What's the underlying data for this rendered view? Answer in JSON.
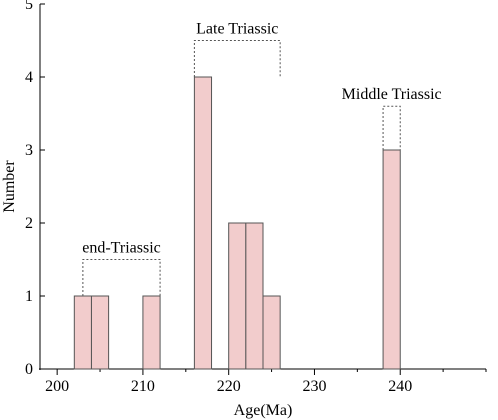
{
  "chart_data": {
    "type": "bar",
    "subtype": "histogram",
    "bin_width": 2,
    "x": [
      203,
      205,
      207,
      209,
      211,
      215,
      217,
      219,
      221,
      223,
      225,
      237,
      239
    ],
    "values": [
      1,
      1,
      0,
      0,
      1,
      0,
      4,
      0,
      2,
      2,
      1,
      0,
      3
    ],
    "xlabel": "Age(Ma)",
    "ylabel": "Number",
    "xlim": [
      198,
      250
    ],
    "ylim": [
      0,
      5
    ],
    "xticks": [
      "200",
      "210",
      "220",
      "230",
      "240"
    ],
    "yticks": [
      "0",
      "1",
      "2",
      "3",
      "4",
      "5"
    ],
    "grid": false,
    "bar_color": "#f2cccc",
    "bar_edge_color": "#555555",
    "annotations": [
      {
        "label": "end-Triassic",
        "x_range": [
          203,
          212
        ],
        "top": 1.5
      },
      {
        "label": "Late Triassic",
        "x_range": [
          216,
          226
        ],
        "top": 4.5
      },
      {
        "label": "Middle Triassic",
        "x_range": [
          238,
          240
        ],
        "top": 3.6
      }
    ]
  }
}
